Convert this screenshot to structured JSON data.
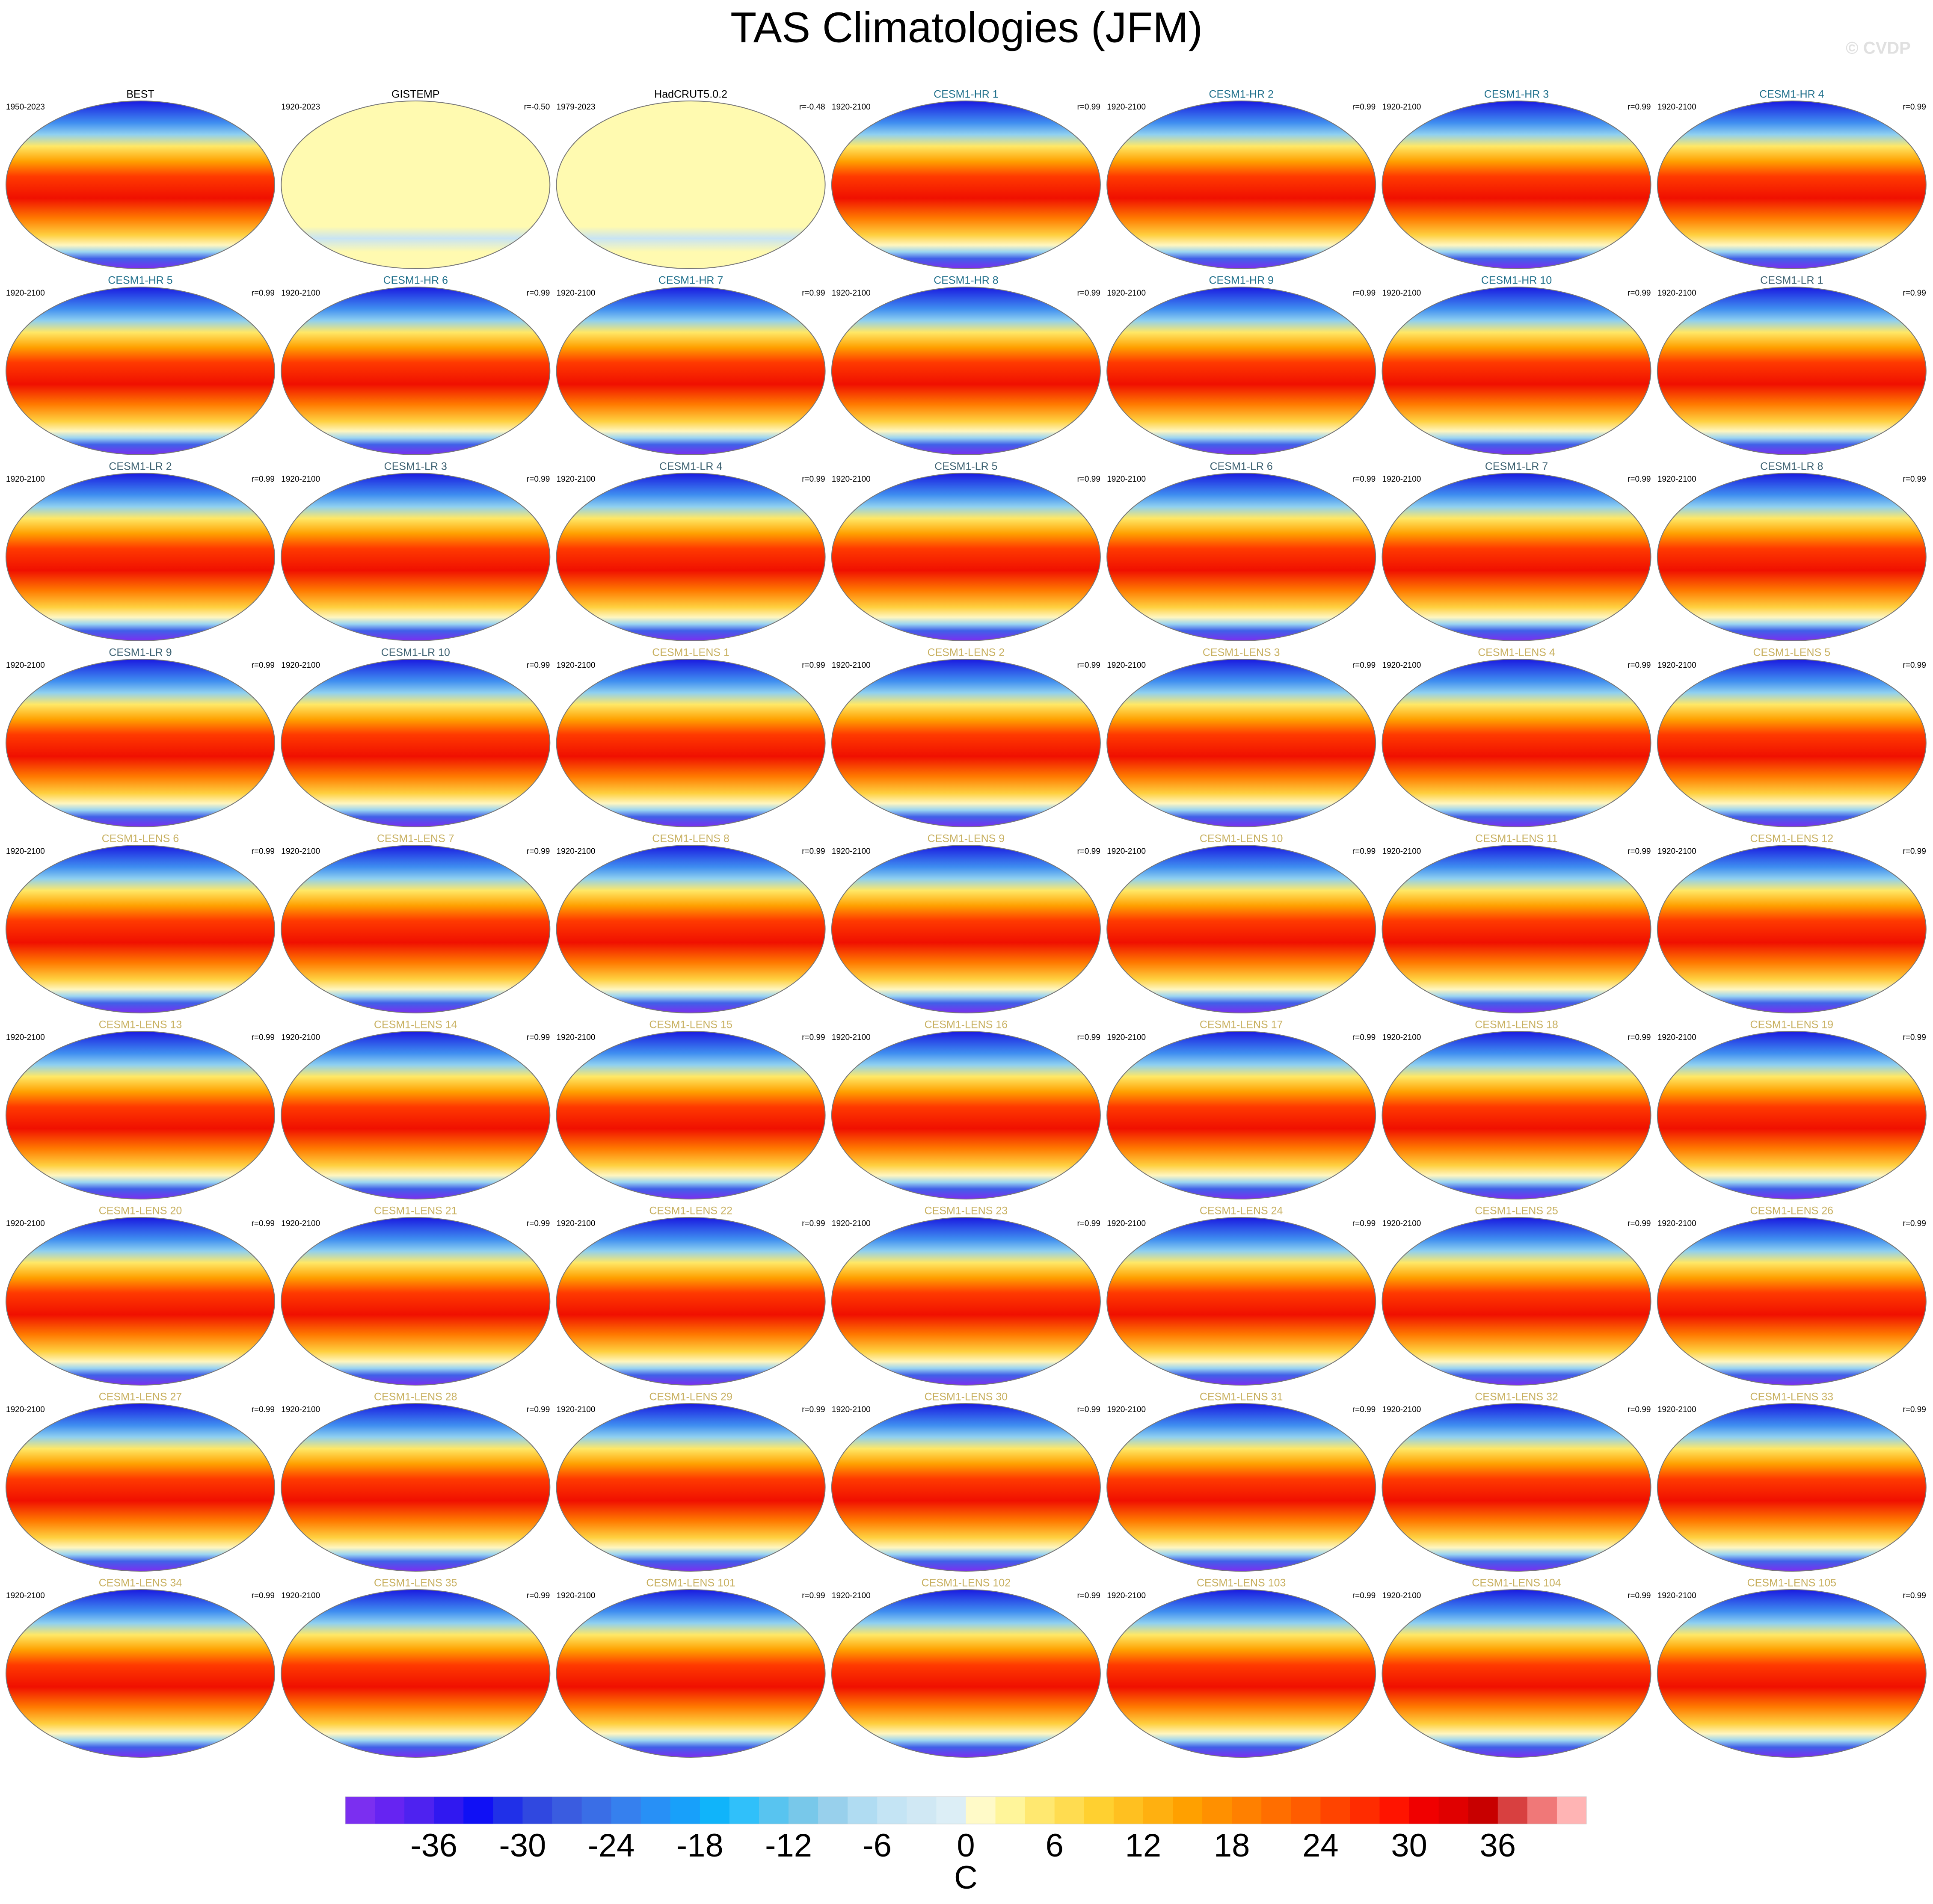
{
  "chart_data": {
    "type": "map-panels",
    "title": "TAS Climatologies (JFM)",
    "watermark": "© CVDP",
    "panels": [
      {
        "title": "BEST",
        "years": "1950-2023",
        "color": "#000000"
      },
      {
        "title": "GISTEMP",
        "years": "1920-2023",
        "r": "r=-0.50",
        "color": "#000000"
      },
      {
        "title": "HadCRUT5.0.2",
        "years": "1979-2023",
        "r": "r=-0.48",
        "color": "#000000"
      },
      {
        "title": "CESM1-HR 1",
        "years": "1920-2100",
        "r": "r=0.99",
        "color": "#1f6f8b"
      },
      {
        "title": "CESM1-HR 2",
        "years": "1920-2100",
        "r": "r=0.99",
        "color": "#1f6f8b"
      },
      {
        "title": "CESM1-HR 3",
        "years": "1920-2100",
        "r": "r=0.99",
        "color": "#1f6f8b"
      },
      {
        "title": "CESM1-HR 4",
        "years": "1920-2100",
        "r": "r=0.99",
        "color": "#1f6f8b"
      },
      {
        "title": "CESM1-HR 5",
        "years": "1920-2100",
        "r": "r=0.99",
        "color": "#1f6f8b"
      },
      {
        "title": "CESM1-HR 6",
        "years": "1920-2100",
        "r": "r=0.99",
        "color": "#1f6f8b"
      },
      {
        "title": "CESM1-HR 7",
        "years": "1920-2100",
        "r": "r=0.99",
        "color": "#1f6f8b"
      },
      {
        "title": "CESM1-HR 8",
        "years": "1920-2100",
        "r": "r=0.99",
        "color": "#1f6f8b"
      },
      {
        "title": "CESM1-HR 9",
        "years": "1920-2100",
        "r": "r=0.99",
        "color": "#1f6f8b"
      },
      {
        "title": "CESM1-HR 10",
        "years": "1920-2100",
        "r": "r=0.99",
        "color": "#1f6f8b"
      },
      {
        "title": "CESM1-LR 1",
        "years": "1920-2100",
        "r": "r=0.99",
        "color": "#3f6373"
      },
      {
        "title": "CESM1-LR 2",
        "years": "1920-2100",
        "r": "r=0.99",
        "color": "#3f6373"
      },
      {
        "title": "CESM1-LR 3",
        "years": "1920-2100",
        "r": "r=0.99",
        "color": "#3f6373"
      },
      {
        "title": "CESM1-LR 4",
        "years": "1920-2100",
        "r": "r=0.99",
        "color": "#3f6373"
      },
      {
        "title": "CESM1-LR 5",
        "years": "1920-2100",
        "r": "r=0.99",
        "color": "#3f6373"
      },
      {
        "title": "CESM1-LR 6",
        "years": "1920-2100",
        "r": "r=0.99",
        "color": "#3f6373"
      },
      {
        "title": "CESM1-LR 7",
        "years": "1920-2100",
        "r": "r=0.99",
        "color": "#3f6373"
      },
      {
        "title": "CESM1-LR 8",
        "years": "1920-2100",
        "r": "r=0.99",
        "color": "#3f6373"
      },
      {
        "title": "CESM1-LR 9",
        "years": "1920-2100",
        "r": "r=0.99",
        "color": "#3f6373"
      },
      {
        "title": "CESM1-LR 10",
        "years": "1920-2100",
        "r": "r=0.99",
        "color": "#3f6373"
      },
      {
        "title": "CESM1-LENS 1",
        "years": "1920-2100",
        "r": "r=0.99",
        "color": "#c8b060"
      },
      {
        "title": "CESM1-LENS 2",
        "years": "1920-2100",
        "r": "r=0.99",
        "color": "#c8b060"
      },
      {
        "title": "CESM1-LENS 3",
        "years": "1920-2100",
        "r": "r=0.99",
        "color": "#c8b060"
      },
      {
        "title": "CESM1-LENS 4",
        "years": "1920-2100",
        "r": "r=0.99",
        "color": "#c8b060"
      },
      {
        "title": "CESM1-LENS 5",
        "years": "1920-2100",
        "r": "r=0.99",
        "color": "#c8b060"
      },
      {
        "title": "CESM1-LENS 6",
        "years": "1920-2100",
        "r": "r=0.99",
        "color": "#c8b060"
      },
      {
        "title": "CESM1-LENS 7",
        "years": "1920-2100",
        "r": "r=0.99",
        "color": "#c8b060"
      },
      {
        "title": "CESM1-LENS 8",
        "years": "1920-2100",
        "r": "r=0.99",
        "color": "#c8b060"
      },
      {
        "title": "CESM1-LENS 9",
        "years": "1920-2100",
        "r": "r=0.99",
        "color": "#c8b060"
      },
      {
        "title": "CESM1-LENS 10",
        "years": "1920-2100",
        "r": "r=0.99",
        "color": "#c8b060"
      },
      {
        "title": "CESM1-LENS 11",
        "years": "1920-2100",
        "r": "r=0.99",
        "color": "#c8b060"
      },
      {
        "title": "CESM1-LENS 12",
        "years": "1920-2100",
        "r": "r=0.99",
        "color": "#c8b060"
      },
      {
        "title": "CESM1-LENS 13",
        "years": "1920-2100",
        "r": "r=0.99",
        "color": "#c8b060"
      },
      {
        "title": "CESM1-LENS 14",
        "years": "1920-2100",
        "r": "r=0.99",
        "color": "#c8b060"
      },
      {
        "title": "CESM1-LENS 15",
        "years": "1920-2100",
        "r": "r=0.99",
        "color": "#c8b060"
      },
      {
        "title": "CESM1-LENS 16",
        "years": "1920-2100",
        "r": "r=0.99",
        "color": "#c8b060"
      },
      {
        "title": "CESM1-LENS 17",
        "years": "1920-2100",
        "r": "r=0.99",
        "color": "#c8b060"
      },
      {
        "title": "CESM1-LENS 18",
        "years": "1920-2100",
        "r": "r=0.99",
        "color": "#c8b060"
      },
      {
        "title": "CESM1-LENS 19",
        "years": "1920-2100",
        "r": "r=0.99",
        "color": "#c8b060"
      },
      {
        "title": "CESM1-LENS 20",
        "years": "1920-2100",
        "r": "r=0.99",
        "color": "#c8b060"
      },
      {
        "title": "CESM1-LENS 21",
        "years": "1920-2100",
        "r": "r=0.99",
        "color": "#c8b060"
      },
      {
        "title": "CESM1-LENS 22",
        "years": "1920-2100",
        "r": "r=0.99",
        "color": "#c8b060"
      },
      {
        "title": "CESM1-LENS 23",
        "years": "1920-2100",
        "r": "r=0.99",
        "color": "#c8b060"
      },
      {
        "title": "CESM1-LENS 24",
        "years": "1920-2100",
        "r": "r=0.99",
        "color": "#c8b060"
      },
      {
        "title": "CESM1-LENS 25",
        "years": "1920-2100",
        "r": "r=0.99",
        "color": "#c8b060"
      },
      {
        "title": "CESM1-LENS 26",
        "years": "1920-2100",
        "r": "r=0.99",
        "color": "#c8b060"
      },
      {
        "title": "CESM1-LENS 27",
        "years": "1920-2100",
        "r": "r=0.99",
        "color": "#c8b060"
      },
      {
        "title": "CESM1-LENS 28",
        "years": "1920-2100",
        "r": "r=0.99",
        "color": "#c8b060"
      },
      {
        "title": "CESM1-LENS 29",
        "years": "1920-2100",
        "r": "r=0.99",
        "color": "#c8b060"
      },
      {
        "title": "CESM1-LENS 30",
        "years": "1920-2100",
        "r": "r=0.99",
        "color": "#c8b060"
      },
      {
        "title": "CESM1-LENS 31",
        "years": "1920-2100",
        "r": "r=0.99",
        "color": "#c8b060"
      },
      {
        "title": "CESM1-LENS 32",
        "years": "1920-2100",
        "r": "r=0.99",
        "color": "#c8b060"
      },
      {
        "title": "CESM1-LENS 33",
        "years": "1920-2100",
        "r": "r=0.99",
        "color": "#c8b060"
      },
      {
        "title": "CESM1-LENS 34",
        "years": "1920-2100",
        "r": "r=0.99",
        "color": "#c8b060"
      },
      {
        "title": "CESM1-LENS 35",
        "years": "1920-2100",
        "r": "r=0.99",
        "color": "#c8b060"
      },
      {
        "title": "CESM1-LENS 101",
        "years": "1920-2100",
        "r": "r=0.99",
        "color": "#c8b060"
      },
      {
        "title": "CESM1-LENS 102",
        "years": "1920-2100",
        "r": "r=0.99",
        "color": "#c8b060"
      },
      {
        "title": "CESM1-LENS 103",
        "years": "1920-2100",
        "r": "r=0.99",
        "color": "#c8b060"
      },
      {
        "title": "CESM1-LENS 104",
        "years": "1920-2100",
        "r": "r=0.99",
        "color": "#c8b060"
      },
      {
        "title": "CESM1-LENS 105",
        "years": "1920-2100",
        "r": "r=0.99",
        "color": "#c8b060"
      }
    ],
    "colorbar": {
      "label": "C",
      "xlim": [
        -42,
        42
      ],
      "xticks": [
        -36,
        -30,
        -24,
        -18,
        -12,
        -6,
        0,
        6,
        12,
        18,
        24,
        30,
        36
      ],
      "colors": [
        "#7b2ff0",
        "#6624f2",
        "#4e22f0",
        "#3018f0",
        "#1010f5",
        "#2030e8",
        "#3048e0",
        "#3a5ce0",
        "#3a6ee6",
        "#3680ee",
        "#2890f6",
        "#18a0fa",
        "#10b4fa",
        "#30c0fa",
        "#58c4f0",
        "#78c8ea",
        "#98d0ec",
        "#b0dcf2",
        "#c4e4f4",
        "#d0e8f4",
        "#dceef6",
        "#fffac8",
        "#fff59a",
        "#ffe870",
        "#ffdc50",
        "#ffd030",
        "#ffc020",
        "#ffb010",
        "#ffa000",
        "#ff9000",
        "#ff8000",
        "#ff6e00",
        "#ff5c00",
        "#ff4400",
        "#ff2c00",
        "#ff1400",
        "#f00000",
        "#e00000",
        "#c80000",
        "#d84040",
        "#f07878",
        "#ffb4b4"
      ]
    }
  }
}
